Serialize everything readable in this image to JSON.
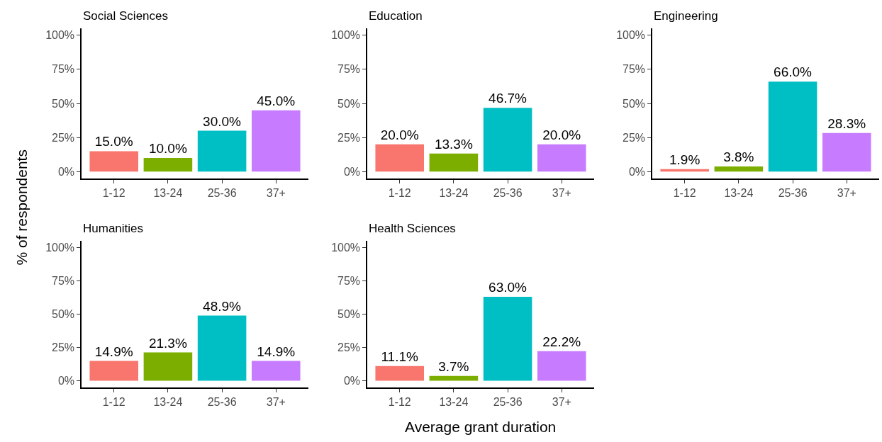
{
  "chart_data": [
    {
      "type": "bar",
      "title": "Social Sciences",
      "ylabel": "% of respondents",
      "categories": [
        "1-12",
        "13-24",
        "25-36",
        "37+"
      ],
      "values": [
        15.0,
        10.0,
        30.0,
        45.0
      ],
      "value_labels": [
        "15.0%",
        "10.0%",
        "30.0%",
        "45.0%"
      ],
      "colors": [
        "#f8766d",
        "#7cae00",
        "#00bfc4",
        "#c77cff"
      ],
      "ylim": [
        -5,
        105
      ],
      "yticks": [
        {
          "value": 0,
          "label": "0%"
        },
        {
          "value": 25,
          "label": "25%"
        },
        {
          "value": 50,
          "label": "50%"
        },
        {
          "value": 75,
          "label": "75%"
        },
        {
          "value": 100,
          "label": "100%"
        }
      ]
    },
    {
      "type": "bar",
      "title": "Education",
      "categories": [
        "1-12",
        "13-24",
        "25-36",
        "37+"
      ],
      "values": [
        20.0,
        13.3,
        46.7,
        20.0
      ],
      "value_labels": [
        "20.0%",
        "13.3%",
        "46.7%",
        "20.0%"
      ],
      "colors": [
        "#f8766d",
        "#7cae00",
        "#00bfc4",
        "#c77cff"
      ],
      "ylim": [
        -5,
        105
      ],
      "yticks": [
        {
          "value": 0,
          "label": "0%"
        },
        {
          "value": 25,
          "label": "25%"
        },
        {
          "value": 50,
          "label": "50%"
        },
        {
          "value": 75,
          "label": "75%"
        },
        {
          "value": 100,
          "label": "100%"
        }
      ]
    },
    {
      "type": "bar",
      "title": "Engineering",
      "categories": [
        "1-12",
        "13-24",
        "25-36",
        "37+"
      ],
      "values": [
        1.9,
        3.8,
        66.0,
        28.3
      ],
      "value_labels": [
        "1.9%",
        "3.8%",
        "66.0%",
        "28.3%"
      ],
      "colors": [
        "#f8766d",
        "#7cae00",
        "#00bfc4",
        "#c77cff"
      ],
      "ylim": [
        -5,
        105
      ],
      "yticks": [
        {
          "value": 0,
          "label": "0%"
        },
        {
          "value": 25,
          "label": "25%"
        },
        {
          "value": 50,
          "label": "50%"
        },
        {
          "value": 75,
          "label": "75%"
        },
        {
          "value": 100,
          "label": "100%"
        }
      ]
    },
    {
      "type": "bar",
      "title": "Humanities",
      "categories": [
        "1-12",
        "13-24",
        "25-36",
        "37+"
      ],
      "values": [
        14.9,
        21.3,
        48.9,
        14.9
      ],
      "value_labels": [
        "14.9%",
        "21.3%",
        "48.9%",
        "14.9%"
      ],
      "colors": [
        "#f8766d",
        "#7cae00",
        "#00bfc4",
        "#c77cff"
      ],
      "ylim": [
        -5,
        105
      ],
      "yticks": [
        {
          "value": 0,
          "label": "0%"
        },
        {
          "value": 25,
          "label": "25%"
        },
        {
          "value": 50,
          "label": "50%"
        },
        {
          "value": 75,
          "label": "75%"
        },
        {
          "value": 100,
          "label": "100%"
        }
      ]
    },
    {
      "type": "bar",
      "title": "Health Sciences",
      "xlabel": "Average grant duration",
      "categories": [
        "1-12",
        "13-24",
        "25-36",
        "37+"
      ],
      "values": [
        11.1,
        3.7,
        63.0,
        22.2
      ],
      "value_labels": [
        "11.1%",
        "3.7%",
        "63.0%",
        "22.2%"
      ],
      "colors": [
        "#f8766d",
        "#7cae00",
        "#00bfc4",
        "#c77cff"
      ],
      "ylim": [
        -5,
        105
      ],
      "yticks": [
        {
          "value": 0,
          "label": "0%"
        },
        {
          "value": 25,
          "label": "25%"
        },
        {
          "value": 50,
          "label": "50%"
        },
        {
          "value": 75,
          "label": "75%"
        },
        {
          "value": 100,
          "label": "100%"
        }
      ]
    }
  ]
}
